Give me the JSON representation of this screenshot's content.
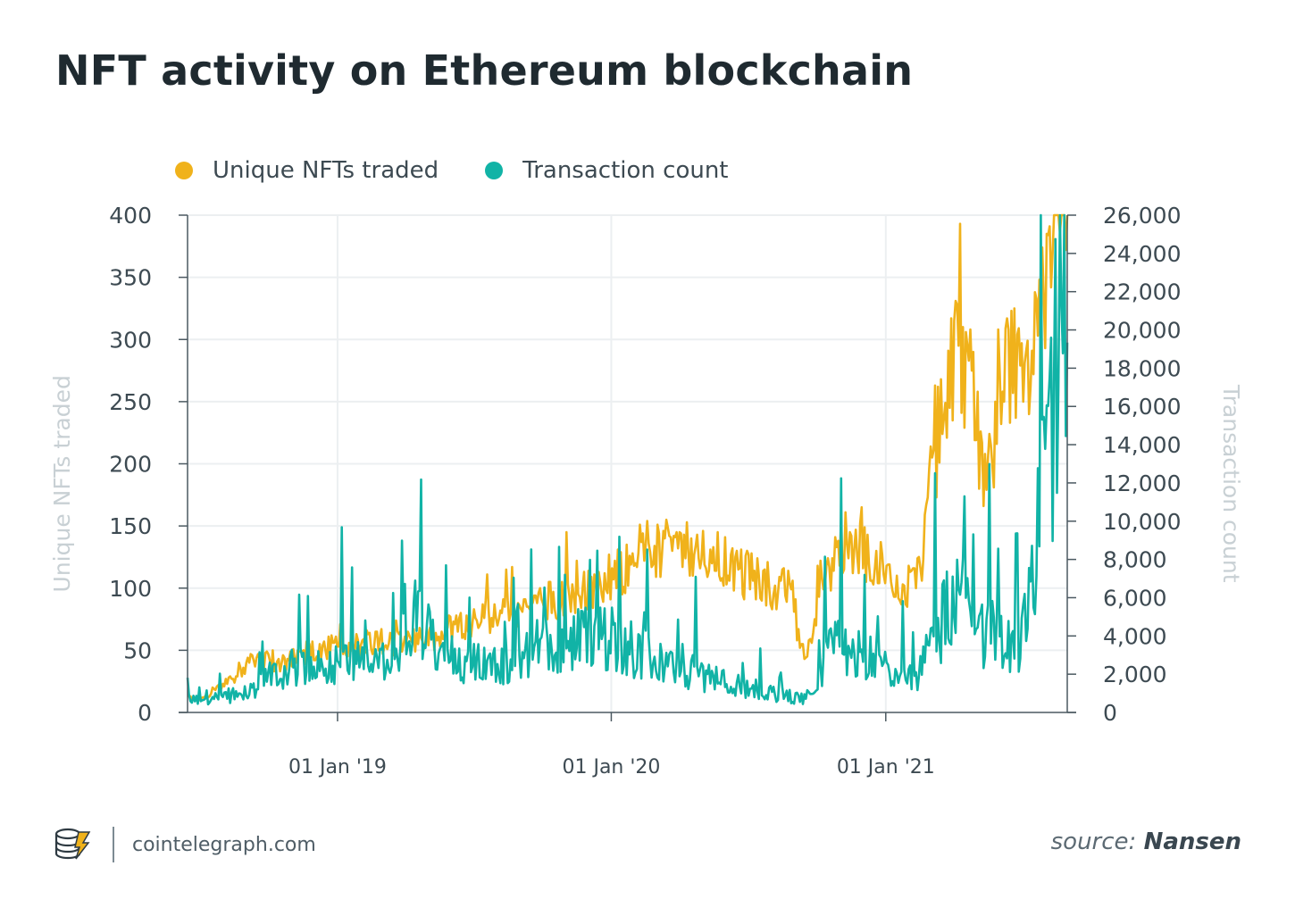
{
  "title": "NFT activity on Ethereum blockchain",
  "colors": {
    "nfts": "#f0b21b",
    "tx": "#11b3a6",
    "grid": "#eceff1",
    "axis": "#4b5961",
    "text": "#3d4a52",
    "axis_title": "#c8d0d4"
  },
  "footer": {
    "site": "cointelegraph.com",
    "source_prefix": "source:",
    "source_name": "Nansen"
  },
  "chart_data": {
    "type": "line",
    "title": "NFT activity on Ethereum blockchain",
    "series": [
      {
        "name": "Unique NFTs traded",
        "axis": "left",
        "values": []
      },
      {
        "name": "Transaction count",
        "axis": "right",
        "values": []
      }
    ],
    "x_range": [
      "2018-06-15",
      "2021-08-31"
    ],
    "x_ticks": [
      {
        "date": "2019-01-01",
        "label": "01 Jan '19"
      },
      {
        "date": "2020-01-01",
        "label": "01 Jan '20"
      },
      {
        "date": "2021-01-01",
        "label": "01 Jan '21"
      }
    ],
    "left_axis": {
      "label": "Unique NFTs traded",
      "ylim": [
        0,
        400
      ],
      "ticks": [
        0,
        50,
        100,
        150,
        200,
        250,
        300,
        350,
        400
      ],
      "tick_labels": [
        "0",
        "50",
        "100",
        "150",
        "200",
        "250",
        "300",
        "350",
        "400"
      ]
    },
    "right_axis": {
      "label": "Transaction count",
      "ylim": [
        0,
        26000
      ],
      "ticks": [
        0,
        2000,
        4000,
        6000,
        8000,
        10000,
        12000,
        14000,
        16000,
        18000,
        20000,
        22000,
        24000,
        26000
      ],
      "tick_labels": [
        "0",
        "2,000",
        "4,000",
        "6,000",
        "8,000",
        "10,000",
        "12,000",
        "14,000",
        "16,000",
        "18,000",
        "20,000",
        "22,000",
        "24,000",
        "26,000"
      ]
    },
    "nfts_anchors": [
      [
        0,
        12
      ],
      [
        0.04,
        10
      ],
      [
        0.08,
        20
      ],
      [
        0.12,
        25
      ],
      [
        0.18,
        40
      ],
      [
        0.2,
        45
      ],
      [
        0.25,
        38
      ],
      [
        0.3,
        42
      ],
      [
        0.35,
        50
      ],
      [
        0.4,
        52
      ],
      [
        0.45,
        55
      ],
      [
        0.5,
        57
      ],
      [
        0.55,
        58
      ],
      [
        0.6,
        55
      ],
      [
        0.65,
        58
      ],
      [
        0.7,
        62
      ],
      [
        0.75,
        68
      ],
      [
        0.8,
        72
      ],
      [
        0.85,
        78
      ],
      [
        0.9,
        80
      ],
      [
        0.95,
        85
      ],
      [
        1.0,
        90
      ],
      [
        1.05,
        92
      ],
      [
        1.1,
        95
      ],
      [
        1.15,
        100
      ],
      [
        1.2,
        108
      ],
      [
        1.25,
        118
      ],
      [
        1.3,
        125
      ],
      [
        1.35,
        130
      ],
      [
        1.4,
        132
      ],
      [
        1.45,
        128
      ],
      [
        1.5,
        125
      ],
      [
        1.55,
        115
      ],
      [
        1.6,
        108
      ],
      [
        1.65,
        103
      ],
      [
        1.7,
        98
      ],
      [
        1.72,
        95
      ],
      [
        1.74,
        55
      ],
      [
        1.76,
        50
      ],
      [
        1.78,
        70
      ],
      [
        1.82,
        110
      ],
      [
        1.85,
        140
      ],
      [
        1.9,
        130
      ],
      [
        1.95,
        125
      ],
      [
        2.0,
        112
      ],
      [
        2.05,
        100
      ],
      [
        2.08,
        115
      ],
      [
        2.1,
        160
      ],
      [
        2.13,
        210
      ],
      [
        2.16,
        270
      ],
      [
        2.2,
        285
      ],
      [
        2.23,
        260
      ],
      [
        2.26,
        190
      ],
      [
        2.28,
        200
      ],
      [
        2.3,
        230
      ],
      [
        2.33,
        270
      ],
      [
        2.36,
        280
      ],
      [
        2.39,
        250
      ],
      [
        2.42,
        310
      ],
      [
        2.45,
        330
      ],
      [
        2.47,
        390
      ],
      [
        2.5,
        400
      ]
    ],
    "tx_anchors": [
      [
        0,
        700
      ],
      [
        0.05,
        600
      ],
      [
        0.1,
        800
      ],
      [
        0.15,
        1000
      ],
      [
        0.2,
        1400
      ],
      [
        0.25,
        1900
      ],
      [
        0.3,
        2400
      ],
      [
        0.35,
        2200
      ],
      [
        0.4,
        2500
      ],
      [
        0.45,
        2700
      ],
      [
        0.5,
        2600
      ],
      [
        0.55,
        2500
      ],
      [
        0.6,
        2400
      ],
      [
        0.62,
        4500
      ],
      [
        0.65,
        5000
      ],
      [
        0.7,
        3500
      ],
      [
        0.75,
        3200
      ],
      [
        0.8,
        2600
      ],
      [
        0.85,
        2400
      ],
      [
        0.9,
        2500
      ],
      [
        0.95,
        2800
      ],
      [
        1.0,
        3600
      ],
      [
        1.05,
        3300
      ],
      [
        1.1,
        3800
      ],
      [
        1.15,
        3900
      ],
      [
        1.2,
        4000
      ],
      [
        1.25,
        3300
      ],
      [
        1.3,
        3000
      ],
      [
        1.35,
        2500
      ],
      [
        1.4,
        2300
      ],
      [
        1.45,
        2000
      ],
      [
        1.5,
        1700
      ],
      [
        1.55,
        1500
      ],
      [
        1.6,
        1300
      ],
      [
        1.65,
        1000
      ],
      [
        1.7,
        900
      ],
      [
        1.74,
        700
      ],
      [
        1.78,
        1000
      ],
      [
        1.82,
        3500
      ],
      [
        1.85,
        3800
      ],
      [
        1.9,
        3000
      ],
      [
        1.95,
        2700
      ],
      [
        2.0,
        2200
      ],
      [
        2.05,
        1700
      ],
      [
        2.08,
        1900
      ],
      [
        2.12,
        4000
      ],
      [
        2.16,
        5200
      ],
      [
        2.2,
        6000
      ],
      [
        2.23,
        5500
      ],
      [
        2.26,
        3800
      ],
      [
        2.3,
        4200
      ],
      [
        2.33,
        3400
      ],
      [
        2.36,
        3300
      ],
      [
        2.39,
        5000
      ],
      [
        2.42,
        9500
      ],
      [
        2.45,
        14000
      ],
      [
        2.48,
        20000
      ],
      [
        2.5,
        22000
      ]
    ]
  }
}
